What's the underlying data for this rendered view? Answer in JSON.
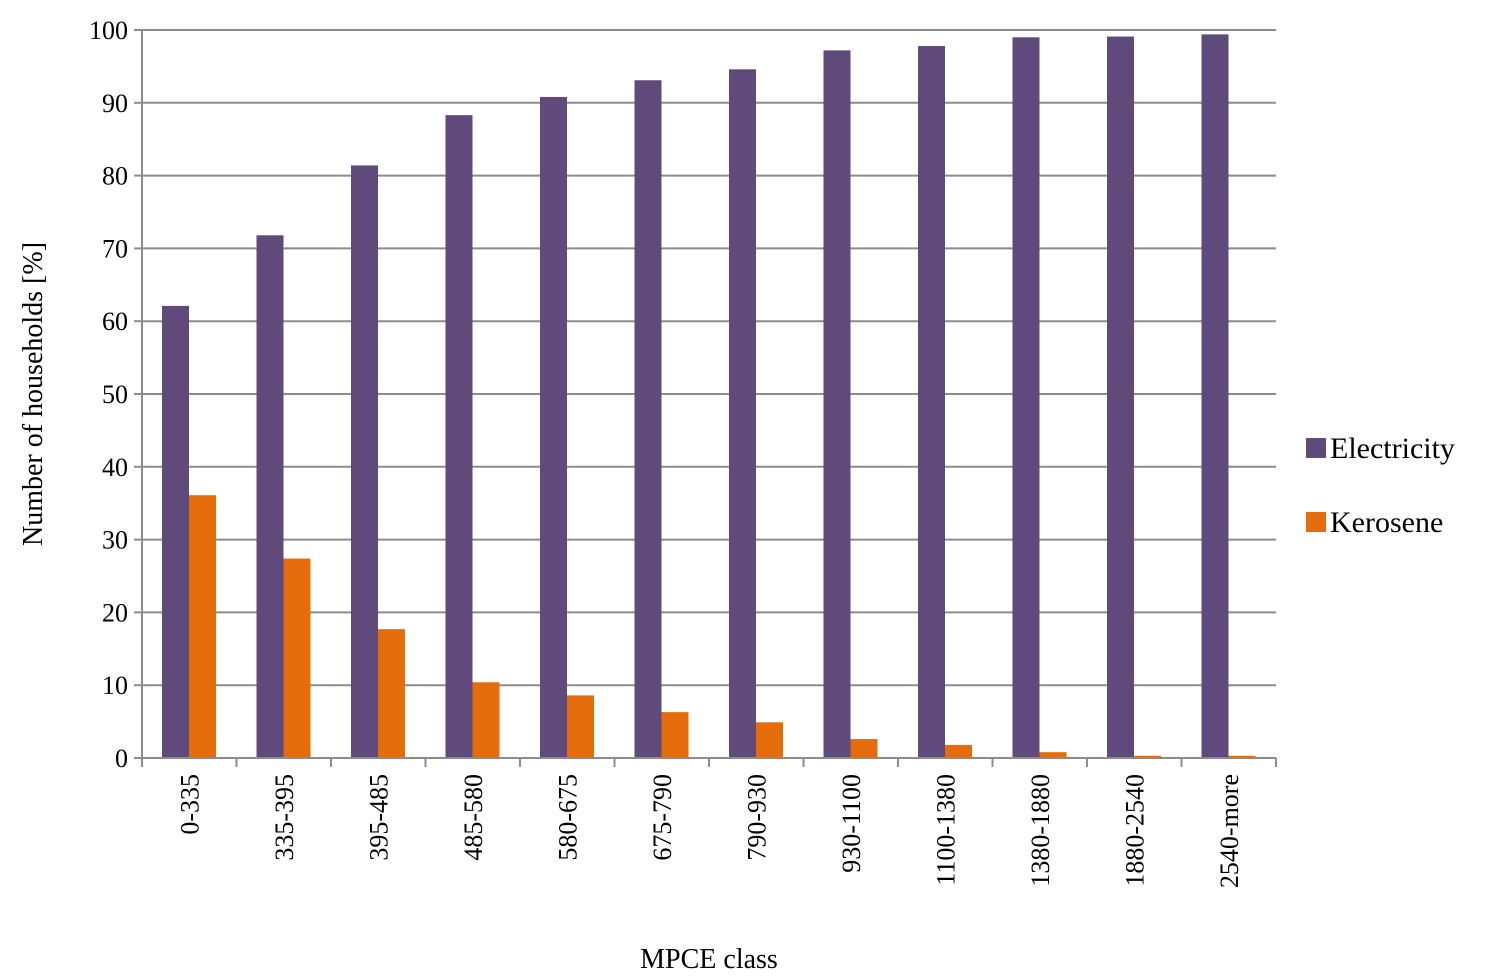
{
  "chart_data": {
    "type": "bar",
    "categories": [
      "0-335",
      "335-395",
      "395-485",
      "485-580",
      "580-675",
      "675-790",
      "790-930",
      "930-1100",
      "1100-1380",
      "1380-1880",
      "1880-2540",
      "2540-more"
    ],
    "series": [
      {
        "name": "Electricity",
        "color": "#5f4a7b",
        "values": [
          62.1,
          71.8,
          81.4,
          88.3,
          90.8,
          93.1,
          94.6,
          97.2,
          97.8,
          99.0,
          99.1,
          99.4
        ]
      },
      {
        "name": "Kerosene",
        "color": "#e46c0a",
        "values": [
          36.1,
          27.4,
          17.7,
          10.4,
          8.6,
          6.3,
          4.9,
          2.6,
          1.8,
          0.8,
          0.3,
          0.3
        ]
      }
    ],
    "xlabel": "MPCE class",
    "ylabel": "Number of households [%]",
    "ylim": [
      0,
      100
    ],
    "yticks": [
      0,
      10,
      20,
      30,
      40,
      50,
      60,
      70,
      80,
      90,
      100
    ],
    "grid": true,
    "legend_position": "right"
  }
}
